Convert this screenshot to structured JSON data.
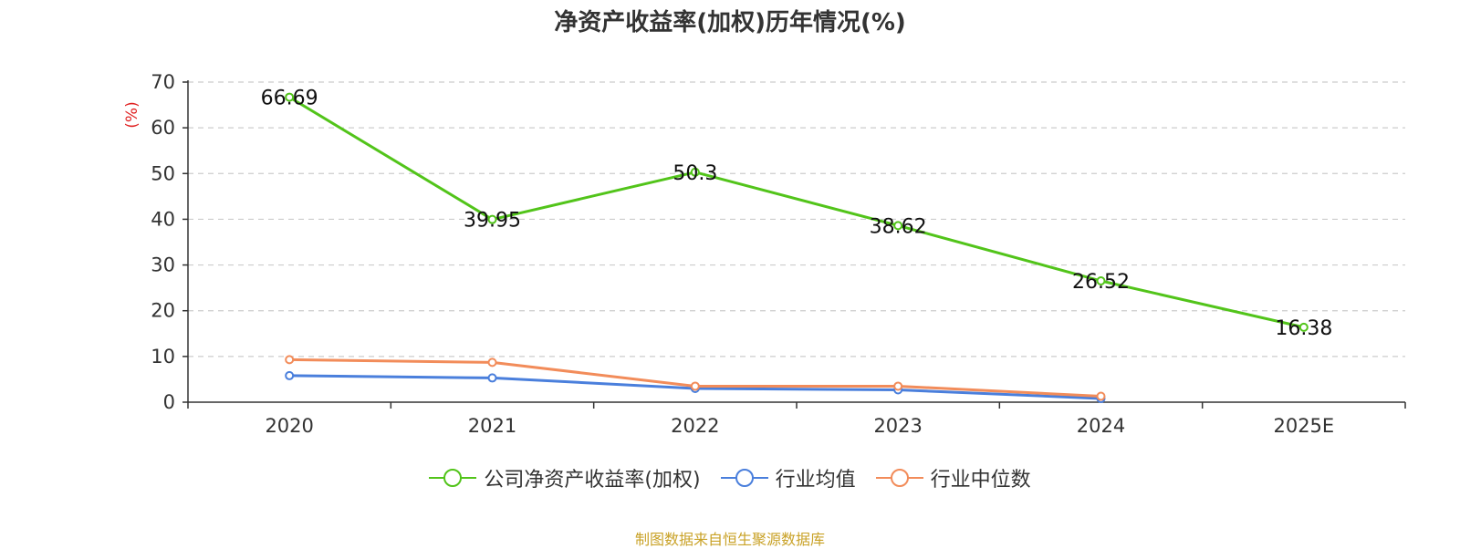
{
  "chart_data": {
    "type": "line",
    "title": "净资产收益率(加权)历年情况(%)",
    "ylabel": "(%)",
    "xlabel": "",
    "categories": [
      "2020",
      "2021",
      "2022",
      "2023",
      "2024",
      "2025E"
    ],
    "ylim": [
      0,
      70
    ],
    "yticks": [
      0,
      10,
      20,
      30,
      40,
      50,
      60,
      70
    ],
    "grid": true,
    "legend_position": "bottom",
    "series": [
      {
        "name": "公司净资产收益率(加权)",
        "color": "#52c41a",
        "values": [
          66.69,
          39.95,
          50.3,
          38.62,
          26.52,
          16.38
        ],
        "labels": [
          "66.69",
          "39.95",
          "50.3",
          "38.62",
          "26.52",
          "16.38"
        ]
      },
      {
        "name": "行业均值",
        "color": "#4a7fdc",
        "values": [
          5.8,
          5.3,
          3.0,
          2.7,
          0.8,
          null
        ]
      },
      {
        "name": "行业中位数",
        "color": "#f28c5a",
        "values": [
          9.3,
          8.7,
          3.5,
          3.5,
          1.3,
          null
        ]
      }
    ],
    "ylabel_color": "#e02020"
  },
  "source": "制图数据来自恒生聚源数据库"
}
